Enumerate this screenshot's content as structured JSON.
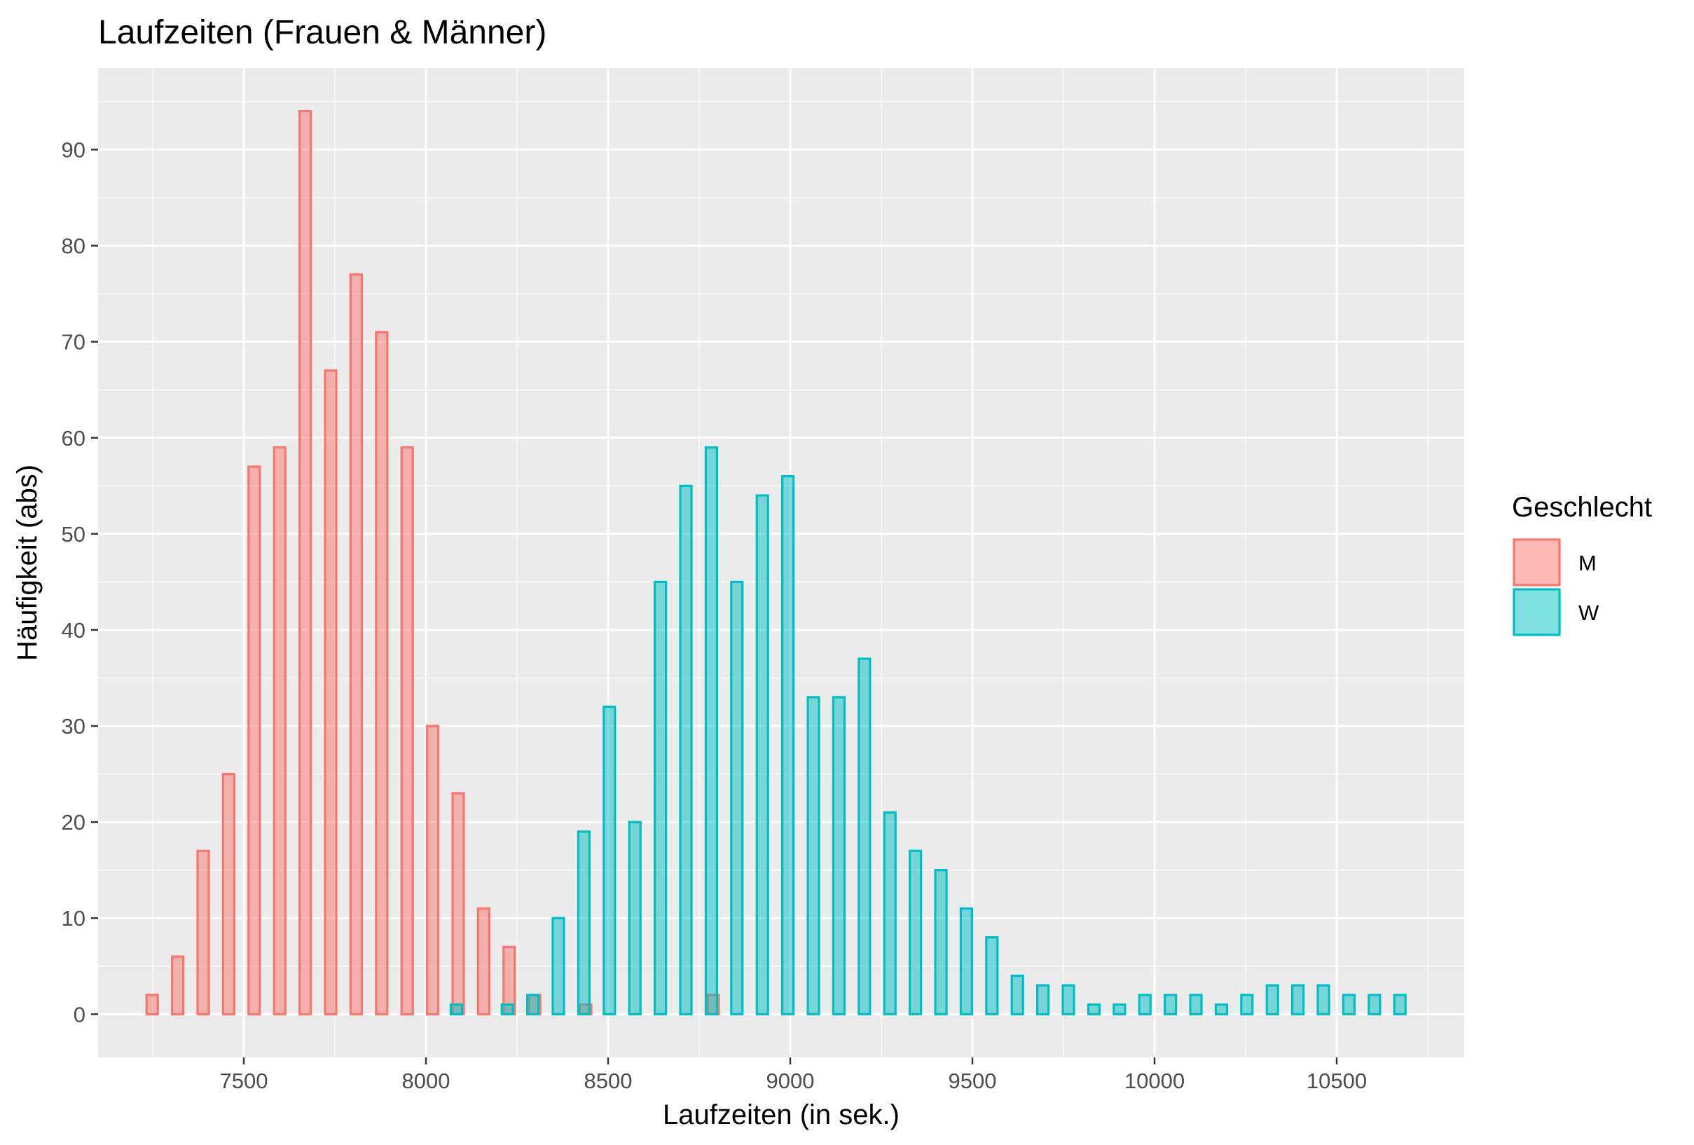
{
  "chart_data": {
    "type": "bar",
    "title": "Laufzeiten (Frauen & Männer)",
    "xlabel": "Laufzeiten (in sek.)",
    "ylabel": "Häufigkeit (abs)",
    "xlim": [
      7100,
      10850
    ],
    "ylim": [
      -4.5,
      98.5
    ],
    "x_ticks": [
      7500,
      8000,
      8500,
      9000,
      9500,
      10000,
      10500
    ],
    "y_ticks": [
      0,
      10,
      20,
      30,
      40,
      50,
      60,
      70,
      80,
      90
    ],
    "grid": true,
    "legend_title": "Geschlecht",
    "legend_position": "right",
    "series": [
      {
        "name": "M",
        "fill": "#F8766D",
        "x": [
          7266,
          7336,
          7406,
          7476,
          7546,
          7616,
          7686,
          7756,
          7826,
          7896,
          7966,
          8036,
          8106,
          8176,
          8246,
          8316,
          8456,
          8806
        ],
        "values": [
          2,
          6,
          17,
          25,
          57,
          59,
          94,
          67,
          77,
          71,
          59,
          30,
          23,
          11,
          7,
          2,
          1,
          2
        ]
      },
      {
        "name": "W",
        "fill": "#00BFC4",
        "x": [
          8066,
          8206,
          8276,
          8346,
          8416,
          8486,
          8556,
          8626,
          8696,
          8766,
          8836,
          8906,
          8976,
          9046,
          9116,
          9186,
          9256,
          9326,
          9396,
          9466,
          9536,
          9606,
          9676,
          9746,
          9816,
          9886,
          9956,
          10026,
          10096,
          10166,
          10236,
          10306,
          10376,
          10446,
          10516,
          10586,
          10656
        ],
        "values": [
          1,
          1,
          2,
          10,
          19,
          32,
          20,
          45,
          55,
          59,
          45,
          54,
          56,
          33,
          33,
          37,
          21,
          17,
          15,
          11,
          8,
          4,
          3,
          3,
          1,
          1,
          2,
          2,
          2,
          1,
          2,
          3,
          3,
          3,
          2,
          2,
          2
        ]
      }
    ]
  }
}
